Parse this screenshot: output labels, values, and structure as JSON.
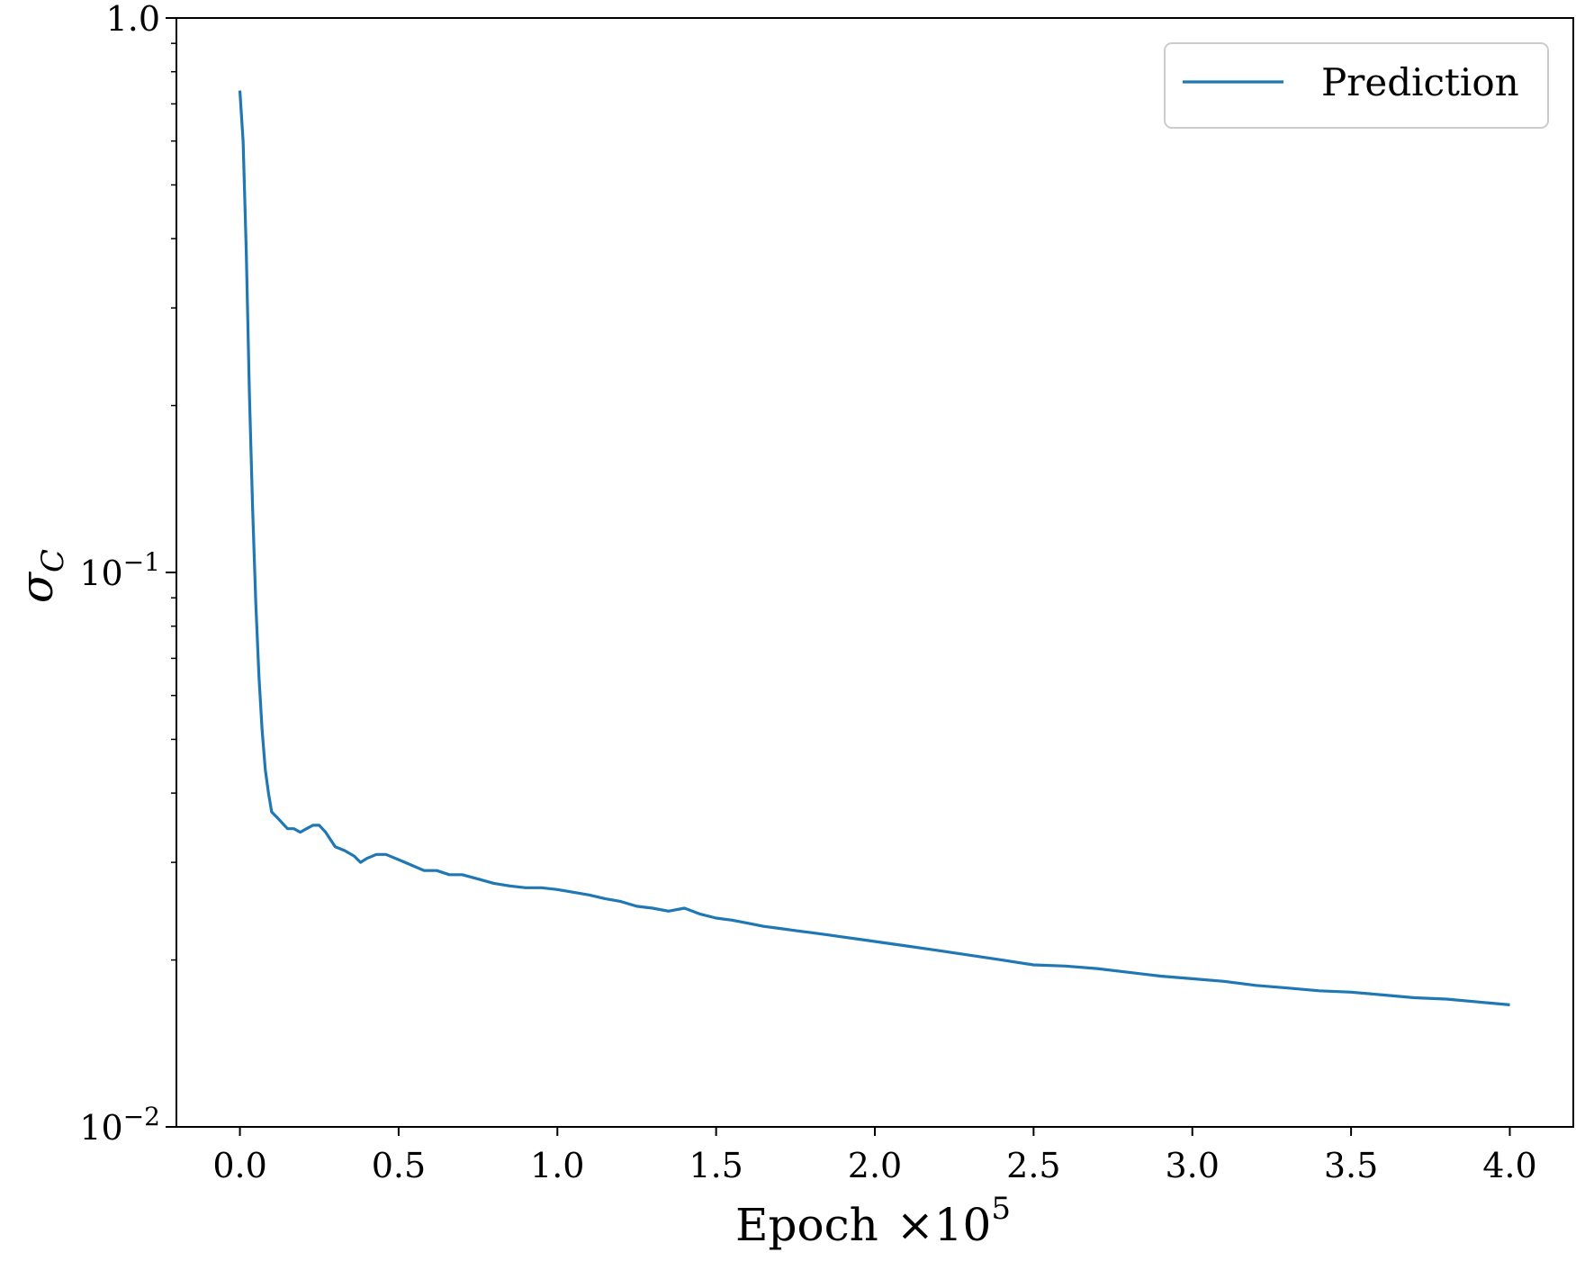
{
  "chart_data": {
    "type": "line",
    "title": "",
    "xlabel": "Epoch",
    "xlabel_multiplier": "×10",
    "xlabel_multiplier_exp": "5",
    "ylabel_symbol": "σ",
    "ylabel_sub": "C",
    "xlim": [
      -0.2,
      4.2
    ],
    "ylim": [
      0.01,
      1.0
    ],
    "yscale": "log",
    "grid": false,
    "legend_position": "top-right",
    "x_ticks": [
      "0.0",
      "0.5",
      "1.0",
      "1.5",
      "2.0",
      "2.5",
      "3.0",
      "3.5",
      "4.0"
    ],
    "y_ticks": [
      {
        "value": 1.0,
        "label": "1.0",
        "sup": ""
      },
      {
        "value": 0.1,
        "label": "10",
        "sup": "−1"
      },
      {
        "value": 0.01,
        "label": "10",
        "sup": "−2"
      }
    ],
    "series": [
      {
        "name": "Prediction",
        "color": "#1f77b4",
        "x": [
          0.0,
          0.01,
          0.02,
          0.03,
          0.04,
          0.05,
          0.06,
          0.07,
          0.08,
          0.09,
          0.1,
          0.11,
          0.12,
          0.13,
          0.14,
          0.15,
          0.17,
          0.19,
          0.21,
          0.23,
          0.25,
          0.27,
          0.3,
          0.33,
          0.36,
          0.38,
          0.4,
          0.43,
          0.46,
          0.49,
          0.52,
          0.55,
          0.58,
          0.62,
          0.66,
          0.7,
          0.75,
          0.8,
          0.85,
          0.9,
          0.95,
          1.0,
          1.05,
          1.1,
          1.15,
          1.2,
          1.25,
          1.3,
          1.35,
          1.4,
          1.45,
          1.5,
          1.55,
          1.6,
          1.65,
          1.7,
          1.75,
          1.8,
          1.85,
          1.9,
          1.95,
          2.0,
          2.1,
          2.2,
          2.3,
          2.4,
          2.5,
          2.6,
          2.7,
          2.8,
          2.9,
          3.0,
          3.1,
          3.2,
          3.3,
          3.4,
          3.5,
          3.6,
          3.7,
          3.8,
          3.9,
          4.0
        ],
        "y": [
          0.74,
          0.6,
          0.38,
          0.21,
          0.13,
          0.088,
          0.065,
          0.052,
          0.044,
          0.04,
          0.037,
          0.0365,
          0.036,
          0.0355,
          0.035,
          0.0345,
          0.0345,
          0.034,
          0.0345,
          0.035,
          0.035,
          0.034,
          0.032,
          0.0315,
          0.0308,
          0.03,
          0.0305,
          0.031,
          0.031,
          0.0305,
          0.03,
          0.0295,
          0.029,
          0.029,
          0.0285,
          0.0285,
          0.028,
          0.0275,
          0.0272,
          0.027,
          0.027,
          0.0268,
          0.0265,
          0.0262,
          0.0258,
          0.0255,
          0.025,
          0.0248,
          0.0245,
          0.0248,
          0.0242,
          0.0238,
          0.0236,
          0.0233,
          0.023,
          0.0228,
          0.0226,
          0.0224,
          0.0222,
          0.022,
          0.0218,
          0.0216,
          0.0212,
          0.0208,
          0.0204,
          0.02,
          0.0196,
          0.0195,
          0.0193,
          0.019,
          0.0187,
          0.0185,
          0.0183,
          0.018,
          0.0178,
          0.0176,
          0.0175,
          0.0173,
          0.0171,
          0.017,
          0.0168,
          0.0166
        ]
      }
    ]
  }
}
